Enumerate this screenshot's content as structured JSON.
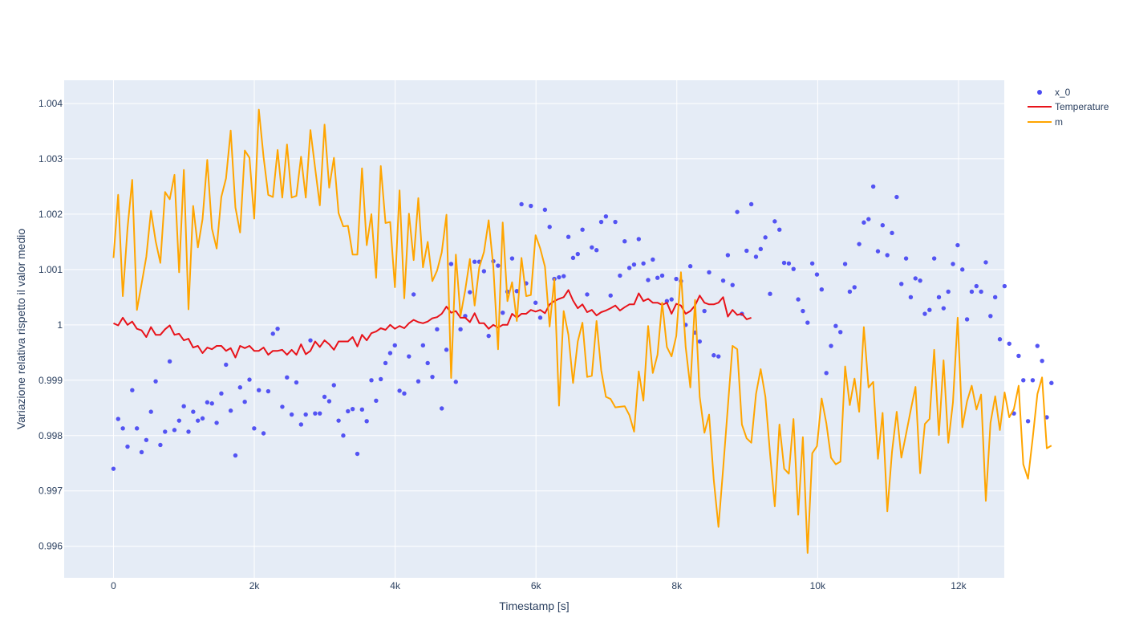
{
  "chart_data": {
    "type": "line",
    "title": "",
    "xlabel": "Timestamp [s]",
    "ylabel": "Variazione relativa rispetto il valor medio",
    "xlim": [
      -700,
      12650
    ],
    "ylim": [
      0.99543,
      1.00442
    ],
    "xticks": [
      0,
      2000,
      4000,
      6000,
      8000,
      10000,
      12000
    ],
    "xtick_labels": [
      "0",
      "2k",
      "4k",
      "6k",
      "8k",
      "10k",
      "12k"
    ],
    "yticks": [
      0.996,
      0.997,
      0.998,
      0.999,
      1.0,
      1.001,
      1.002,
      1.003,
      1.004
    ],
    "ytick_labels": [
      "0.996",
      "0.997",
      "0.998",
      "0.999",
      "1",
      "1.001",
      "1.002",
      "1.003",
      "1.004"
    ],
    "grid": true,
    "legend_position": "top-right",
    "colors": {
      "plot_bg": "#e5ecf6",
      "grid": "#ffffff",
      "text": "#2a3f5f",
      "x_0": "#4b4bf2",
      "Temperature": "#e8131a",
      "m": "#ffa500"
    },
    "x_step": 66.6,
    "series": [
      {
        "name": "x_0",
        "mode": "markers",
        "values": [
          0.9974,
          0.9983,
          0.99813,
          0.9978,
          0.99882,
          0.99813,
          0.9977,
          0.99792,
          0.99843,
          0.99898,
          0.99783,
          0.99807,
          0.99934,
          0.9981,
          0.99827,
          0.99853,
          0.99807,
          0.99843,
          0.99827,
          0.99831,
          0.9986,
          0.99858,
          0.99823,
          0.99876,
          0.99928,
          0.99845,
          0.99764,
          0.99887,
          0.99861,
          0.99901,
          0.99813,
          0.99882,
          0.99804,
          0.9988,
          0.99984,
          0.99993,
          0.99852,
          0.99905,
          0.99838,
          0.99896,
          0.9982,
          0.99838,
          0.99972,
          0.9984,
          0.9984,
          0.9987,
          0.99862,
          0.99891,
          0.99827,
          0.998,
          0.99844,
          0.99848,
          0.99767,
          0.99847,
          0.99826,
          0.999,
          0.99863,
          0.99902,
          0.99931,
          0.99949,
          0.99963,
          0.99881,
          0.99876,
          0.99943,
          1.00055,
          0.99898,
          0.99963,
          0.99931,
          0.99906,
          0.99992,
          0.99849,
          0.99955,
          1.0011,
          0.99897,
          0.99992,
          1.00016,
          1.00059,
          1.00114,
          1.00114,
          1.00097,
          0.9998,
          1.00115,
          1.00107,
          1.00022,
          1.0006,
          1.0012,
          1.00061,
          1.00218,
          1.00075,
          1.00215,
          1.0004,
          1.00013,
          1.00208,
          1.00177,
          1.00083,
          1.00086,
          1.00088,
          1.00159,
          1.00121,
          1.00128,
          1.00172,
          1.00055,
          1.0014,
          1.00135,
          1.00186,
          1.00196,
          1.00053,
          1.00186,
          1.00089,
          1.00151,
          1.00103,
          1.00109,
          1.00155,
          1.00111,
          1.00081,
          1.00118,
          1.00085,
          1.00089,
          1.00043,
          1.00046,
          1.00083,
          1.00079,
          1.0,
          1.00106,
          0.99986,
          0.9997,
          1.00025,
          1.00095,
          0.99945,
          0.99943,
          1.0008,
          1.00126,
          1.00072,
          1.00204,
          1.0002,
          1.00134,
          1.00218,
          1.00123,
          1.00137,
          1.00158,
          1.00056,
          1.00187,
          1.00172,
          1.00112,
          1.00111,
          1.00101,
          1.00046,
          1.00025,
          1.00004,
          1.00111,
          1.00091,
          1.00064,
          0.99913,
          0.99962,
          0.99998,
          0.99987,
          1.0011,
          1.0006,
          1.00068,
          1.00146,
          1.00185,
          1.00191,
          1.0025,
          1.00133,
          1.0018,
          1.00126,
          1.00166,
          1.00231,
          1.00074,
          1.0012,
          1.0005,
          1.00084,
          1.0008,
          1.0002,
          1.00027,
          1.0012,
          1.0005,
          1.0003,
          1.0006,
          1.0011,
          1.00144,
          1.001,
          1.0001,
          1.0006,
          1.0007,
          1.0006,
          1.00113,
          1.00016,
          1.0005,
          0.99974,
          1.0007,
          0.99966,
          0.9984,
          0.99944,
          0.999,
          0.99826,
          0.999,
          0.99962,
          0.99935,
          0.99833,
          0.99895
        ]
      },
      {
        "name": "Temperature",
        "mode": "lines",
        "values": [
          1.00003,
          0.99999,
          1.00013,
          1.0,
          1.00006,
          0.99993,
          0.9999,
          0.99978,
          0.99996,
          0.99982,
          0.99982,
          0.99992,
          0.99999,
          0.99982,
          0.99984,
          0.99972,
          0.99975,
          0.99959,
          0.99962,
          0.99949,
          0.99959,
          0.99956,
          0.99962,
          0.99962,
          0.99953,
          0.99958,
          0.99941,
          0.99962,
          0.99958,
          0.99962,
          0.99953,
          0.99953,
          0.99959,
          0.99946,
          0.99953,
          0.99953,
          0.99955,
          0.99946,
          0.99955,
          0.99946,
          0.99965,
          0.99947,
          0.99953,
          0.9997,
          0.9996,
          0.99972,
          0.99965,
          0.99955,
          0.9997,
          0.9997,
          0.9997,
          0.99978,
          0.99961,
          0.99982,
          0.99972,
          0.99985,
          0.99988,
          0.99994,
          0.99991,
          1.0,
          0.99993,
          0.99998,
          0.99994,
          1.00003,
          1.00009,
          1.00005,
          1.00003,
          1.00006,
          1.00012,
          1.00014,
          1.0002,
          1.00033,
          1.00022,
          1.00025,
          1.00013,
          1.00013,
          1.00005,
          1.00021,
          1.00003,
          1.00003,
          0.99993,
          1.0,
          0.99995,
          1.0,
          1.0,
          1.0002,
          1.00013,
          1.0002,
          1.0002,
          1.00027,
          1.00024,
          1.00027,
          1.00021,
          1.00037,
          1.00043,
          1.00047,
          1.0005,
          1.00063,
          1.00044,
          1.0003,
          1.00037,
          1.00023,
          1.00027,
          1.00017,
          1.00023,
          1.00026,
          1.0003,
          1.00035,
          1.00026,
          1.00032,
          1.00037,
          1.00037,
          1.00057,
          1.00043,
          1.00047,
          1.0004,
          1.0004,
          1.00036,
          1.0004,
          1.0002,
          1.00038,
          1.00035,
          1.0002,
          1.00025,
          1.00035,
          1.00053,
          1.0004,
          1.00037,
          1.00037,
          1.0004,
          1.0005,
          1.00015,
          1.00027,
          1.00018,
          1.0002,
          1.0001,
          1.00013
        ]
      },
      {
        "name": "m",
        "mode": "lines",
        "values": [
          1.00121,
          1.00235,
          1.00052,
          1.00175,
          1.00262,
          1.00027,
          1.00074,
          1.00123,
          1.00206,
          1.00151,
          1.00112,
          1.0024,
          1.00227,
          1.00271,
          1.00095,
          1.0028,
          1.00028,
          1.00215,
          1.0014,
          1.00191,
          1.00298,
          1.00174,
          1.00138,
          1.00231,
          1.00265,
          1.00351,
          1.00212,
          1.00167,
          1.00315,
          1.00302,
          1.00192,
          1.00389,
          1.00303,
          1.00235,
          1.00231,
          1.00316,
          1.0023,
          1.00326,
          1.0023,
          1.00233,
          1.00304,
          1.0023,
          1.00352,
          1.00283,
          1.00216,
          1.00362,
          1.00248,
          1.00302,
          1.00202,
          1.00178,
          1.00179,
          1.00127,
          1.00127,
          1.00283,
          1.00144,
          1.002,
          1.00085,
          1.00287,
          1.00184,
          1.00186,
          1.00068,
          1.00243,
          1.00048,
          1.00201,
          1.00117,
          1.00229,
          1.00104,
          1.0015,
          1.00079,
          1.00098,
          1.00131,
          1.00199,
          0.99904,
          1.00127,
          1.00016,
          1.00063,
          1.00119,
          1.00035,
          1.00104,
          1.00132,
          1.00189,
          1.00105,
          0.99956,
          1.00185,
          1.00043,
          1.00077,
          1.00007,
          1.00121,
          1.00052,
          1.00054,
          1.00162,
          1.00138,
          1.00105,
          0.99997,
          1.00083,
          0.99854,
          1.00025,
          0.99982,
          0.99895,
          0.9997,
          1.00004,
          0.99906,
          0.99908,
          1.00007,
          0.99918,
          0.9987,
          0.99866,
          0.99851,
          0.99852,
          0.99853,
          0.99837,
          0.99807,
          0.99916,
          0.99863,
          0.99998,
          0.99913,
          0.99946,
          1.0004,
          0.9996,
          0.99943,
          0.9998,
          1.00095,
          0.9996,
          0.99887,
          1.00045,
          0.9987,
          0.99805,
          0.99838,
          0.9972,
          0.99635,
          0.9974,
          0.99852,
          0.99962,
          0.99956,
          0.9982,
          0.99795,
          0.99787,
          0.99875,
          0.9992,
          0.9987,
          0.99767,
          0.99672,
          0.9982,
          0.9974,
          0.99731,
          0.9983,
          0.99657,
          0.99797,
          0.99588,
          0.99768,
          0.99781,
          0.99867,
          0.99822,
          0.9976,
          0.99748,
          0.99753,
          0.99925,
          0.99855,
          0.99903,
          0.99843,
          0.99996,
          0.99887,
          0.99897,
          0.99758,
          0.99841,
          0.99663,
          0.9977,
          0.99843,
          0.9976,
          0.99803,
          0.99846,
          0.99888,
          0.99732,
          0.99821,
          0.9983,
          0.99955,
          0.99801,
          0.99936,
          0.99787,
          0.9986,
          1.00013,
          0.99815,
          0.99862,
          0.9989,
          0.99847,
          0.99874,
          0.99682,
          0.99823,
          0.99871,
          0.9981,
          0.99878,
          0.99833,
          0.99848,
          0.9989,
          0.99748,
          0.99722,
          0.99795,
          0.99875,
          0.99905,
          0.99777,
          0.99782
        ]
      }
    ]
  }
}
